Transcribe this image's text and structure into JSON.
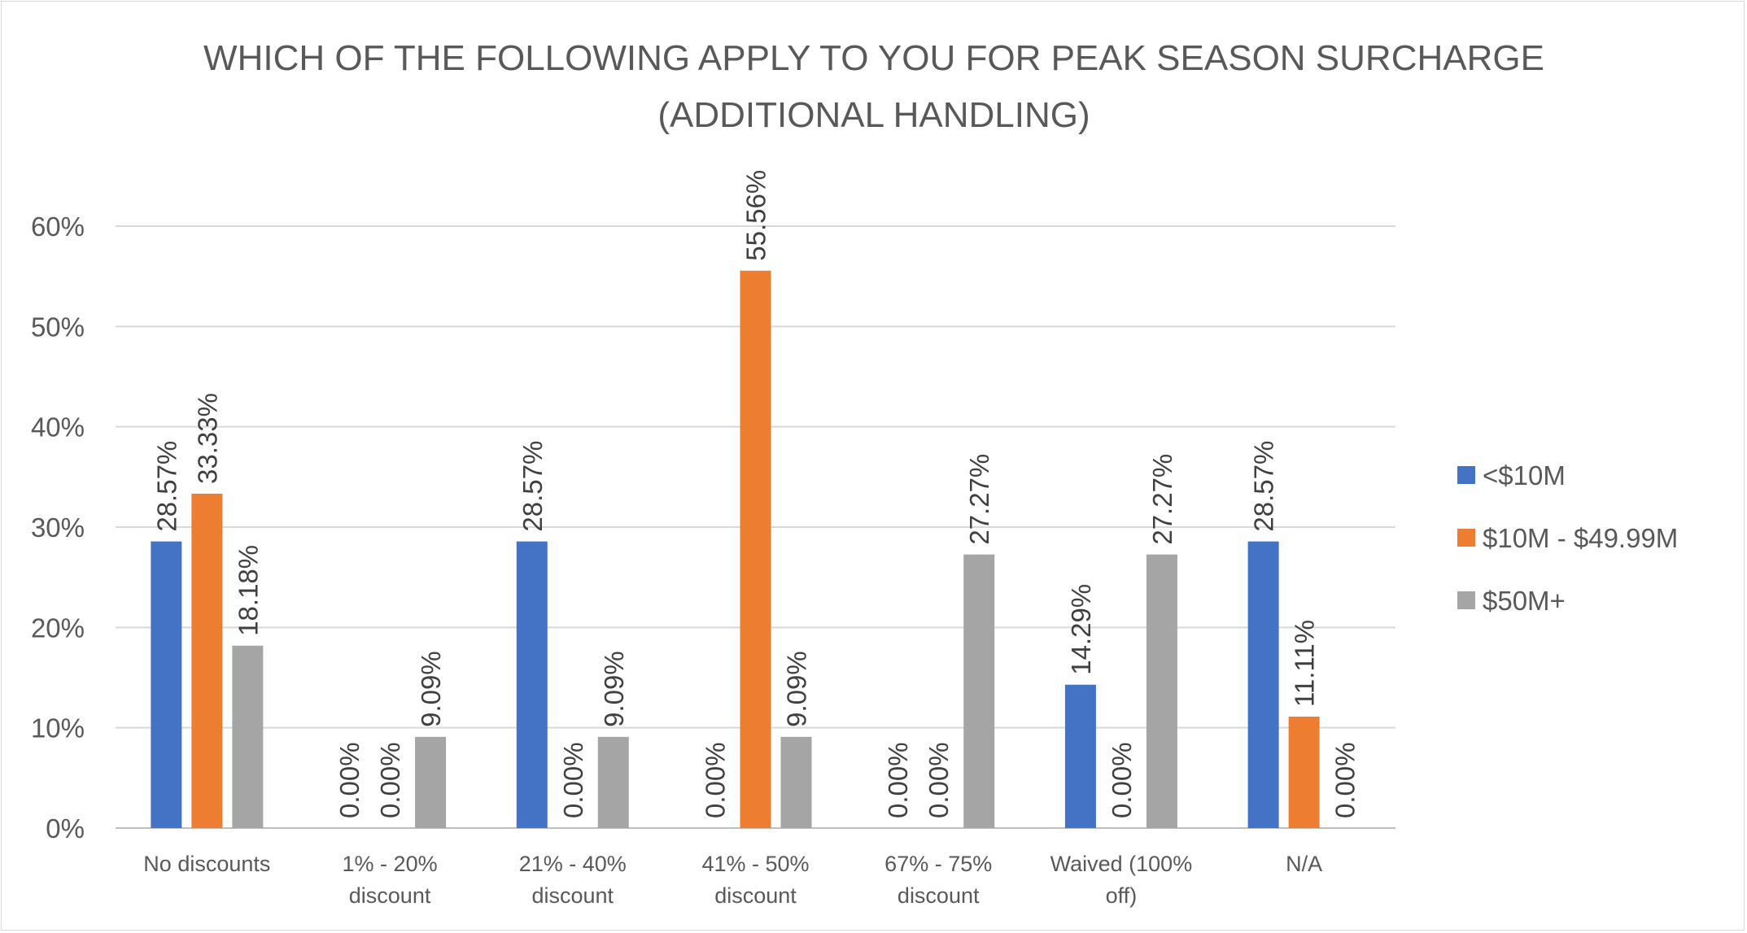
{
  "chart_data": {
    "type": "bar",
    "title_lines": [
      "WHICH OF THE FOLLOWING APPLY TO YOU FOR PEAK SEASON SURCHARGE",
      "(ADDITIONAL HANDLING)"
    ],
    "categories": [
      [
        "No discounts"
      ],
      [
        "1% - 20%",
        "discount"
      ],
      [
        "21% - 40%",
        "discount"
      ],
      [
        "41% - 50%",
        "discount"
      ],
      [
        "67% - 75%",
        "discount"
      ],
      [
        "Waived (100%",
        "off)"
      ],
      [
        "N/A"
      ]
    ],
    "series": [
      {
        "name": "<$10M",
        "color": "#4472c4",
        "values": [
          28.57,
          0.0,
          28.57,
          0.0,
          0.0,
          14.29,
          28.57
        ]
      },
      {
        "name": "$10M - $49.99M",
        "color": "#ed7d31",
        "values": [
          33.33,
          0.0,
          0.0,
          55.56,
          0.0,
          0.0,
          11.11
        ]
      },
      {
        "name": "$50M+",
        "color": "#a5a5a5",
        "values": [
          18.18,
          9.09,
          9.09,
          9.09,
          27.27,
          27.27,
          0.0
        ]
      }
    ],
    "ylim": [
      0,
      60
    ],
    "yticks": [
      0,
      10,
      20,
      30,
      40,
      50,
      60
    ],
    "ytick_labels": [
      "0%",
      "10%",
      "20%",
      "30%",
      "40%",
      "50%",
      "60%"
    ],
    "grid": true,
    "legend_position": "right",
    "data_labels": true,
    "data_label_orientation": "vertical"
  }
}
